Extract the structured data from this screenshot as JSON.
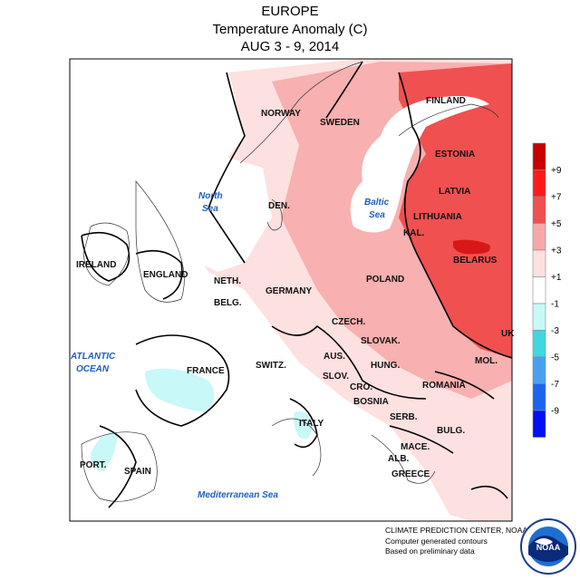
{
  "header": {
    "region": "EUROPE",
    "subtitle": "Temperature Anomaly (C)",
    "period": "AUG 3 - 9, 2014"
  },
  "countries": [
    {
      "name": "NORWAY",
      "key": "norway"
    },
    {
      "name": "SWEDEN",
      "key": "sweden"
    },
    {
      "name": "FINLAND",
      "key": "finland"
    },
    {
      "name": "ESTONIA",
      "key": "estonia"
    },
    {
      "name": "LATVIA",
      "key": "latvia"
    },
    {
      "name": "LITHUANIA",
      "key": "lithuania"
    },
    {
      "name": "KAL.",
      "key": "kaliningrad"
    },
    {
      "name": "BELARUS",
      "key": "belarus"
    },
    {
      "name": "DEN.",
      "key": "denmark"
    },
    {
      "name": "IRELAND",
      "key": "ireland"
    },
    {
      "name": "ENGLAND",
      "key": "england"
    },
    {
      "name": "NETH.",
      "key": "netherlands"
    },
    {
      "name": "BELG.",
      "key": "belgium"
    },
    {
      "name": "GERMANY",
      "key": "germany"
    },
    {
      "name": "POLAND",
      "key": "poland"
    },
    {
      "name": "CZECH.",
      "key": "czech"
    },
    {
      "name": "SLOVAK.",
      "key": "slovakia"
    },
    {
      "name": "FRANCE",
      "key": "france"
    },
    {
      "name": "SWITZ.",
      "key": "switzerland"
    },
    {
      "name": "AUS.",
      "key": "austria"
    },
    {
      "name": "HUNG.",
      "key": "hungary"
    },
    {
      "name": "SLOV.",
      "key": "slovenia"
    },
    {
      "name": "CRO.",
      "key": "croatia"
    },
    {
      "name": "BOSNIA",
      "key": "bosnia"
    },
    {
      "name": "SERB.",
      "key": "serbia"
    },
    {
      "name": "ROMANIA",
      "key": "romania"
    },
    {
      "name": "MOL.",
      "key": "moldova"
    },
    {
      "name": "BULG.",
      "key": "bulgaria"
    },
    {
      "name": "MACE.",
      "key": "macedonia"
    },
    {
      "name": "ALB.",
      "key": "albania"
    },
    {
      "name": "GREECE",
      "key": "greece"
    },
    {
      "name": "ITALY",
      "key": "italy"
    },
    {
      "name": "SPAIN",
      "key": "spain"
    },
    {
      "name": "PORT.",
      "key": "portugal"
    },
    {
      "name": "UK",
      "key": "ukraine_partial"
    }
  ],
  "seas": {
    "north_1": "North",
    "north_2": "Sea",
    "baltic_1": "Baltic",
    "baltic_2": "Sea",
    "atlantic_1": "ATLANTIC",
    "atlantic_2": "OCEAN",
    "med": "Mediterranean Sea"
  },
  "legend": {
    "ticks": [
      "+9",
      "+7",
      "+5",
      "+3",
      "+1",
      "-1",
      "-3",
      "-5",
      "-7",
      "-9"
    ],
    "colors": [
      "#c80000",
      "#ff1a1a",
      "#f05050",
      "#f8a8a8",
      "#fde0e0",
      "#ffffff",
      "#c8f8f8",
      "#40d8e0",
      "#4aa0f0",
      "#1c64f0",
      "#0010f0"
    ]
  },
  "credits": {
    "line1": "CLIMATE PREDICTION CENTER, NOAA",
    "line2": "Computer generated contours",
    "line3": "Based on preliminary data"
  },
  "logo": {
    "text": "NOAA"
  }
}
